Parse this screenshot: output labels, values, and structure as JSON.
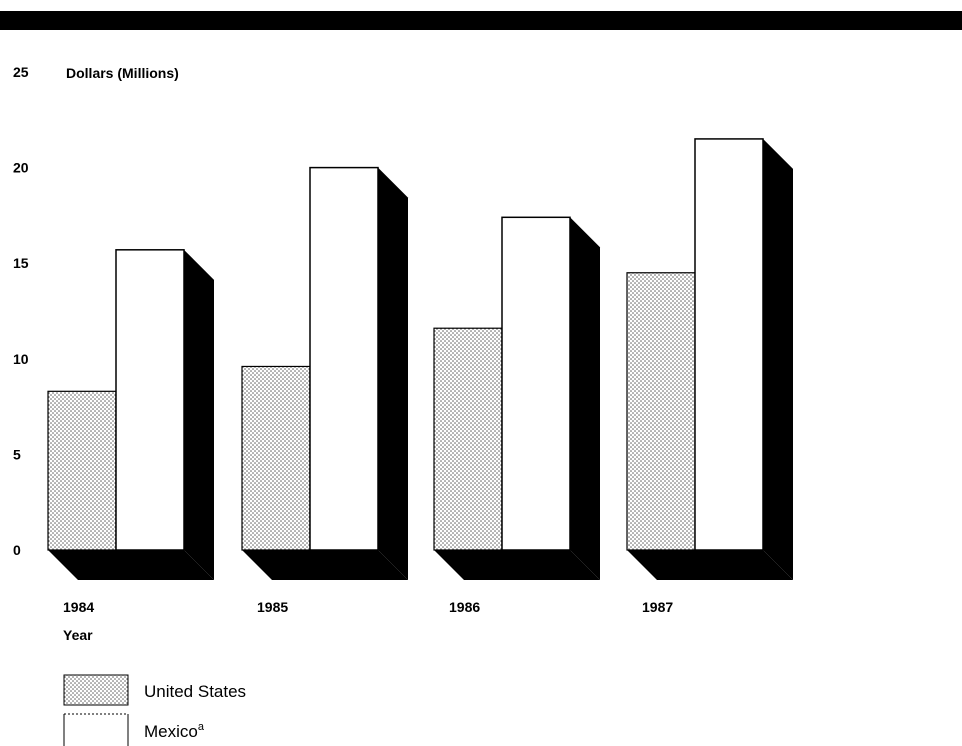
{
  "chart_data": {
    "type": "bar",
    "ylabel": "Dollars (Millions)",
    "xlabel": "Year",
    "categories": [
      "1984",
      "1985",
      "1986",
      "1987"
    ],
    "ylim": [
      0,
      25
    ],
    "yticks": [
      0,
      5,
      10,
      15,
      20,
      25
    ],
    "grid": false,
    "legend_position": "bottom-left",
    "series": [
      {
        "name": "United States",
        "values": [
          8.3,
          9.6,
          11.6,
          14.5
        ],
        "fill": "dotted"
      },
      {
        "name": "Mexico",
        "name_superscript": "a",
        "values": [
          15.7,
          20.0,
          17.4,
          21.5
        ],
        "fill": "white"
      }
    ],
    "colors": {
      "top_bar": "#000000",
      "shadow": "#000000",
      "bar_outline": "#000000",
      "bar_fill": "#ffffff",
      "dot": "#555555"
    }
  }
}
